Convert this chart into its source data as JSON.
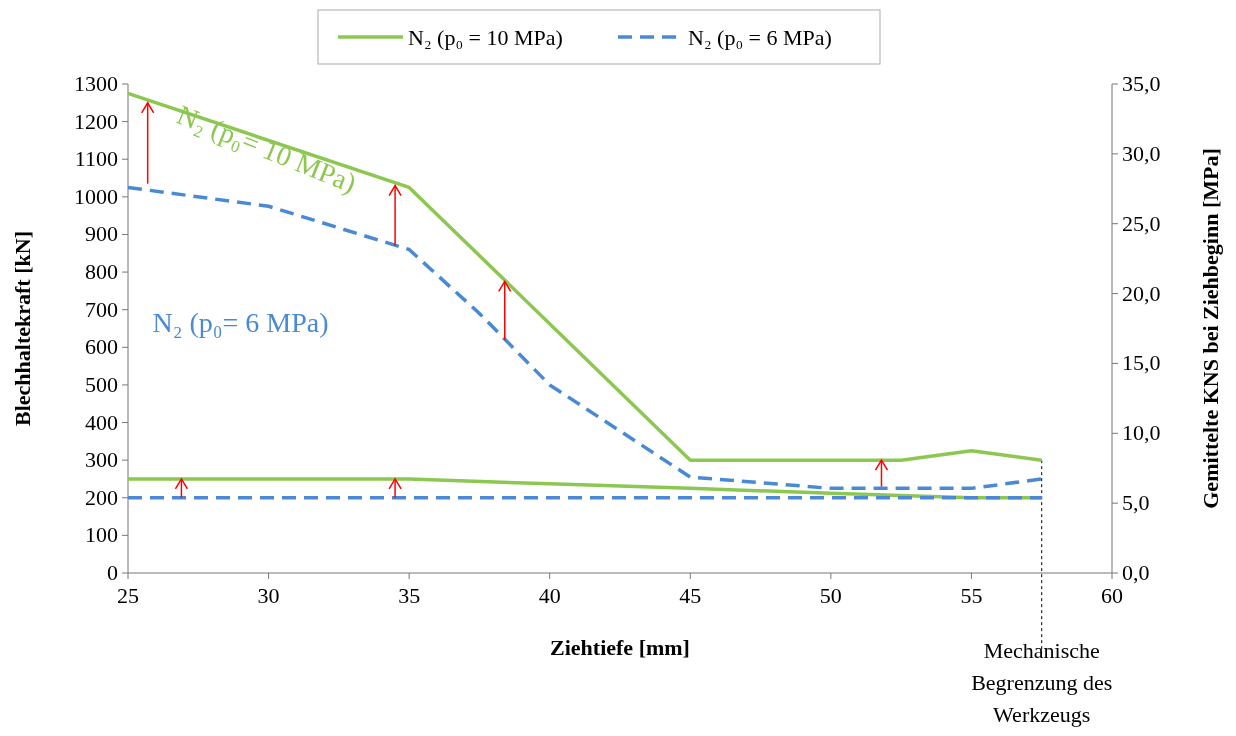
{
  "chart_data": {
    "type": "line",
    "xlabel": "Ziehtiefe [mm]",
    "ylabel": "Blechhaltekraft  [kN]",
    "y2label": "Gemittelte KNS bei Ziehbeginn [MPa]",
    "xlim": [
      25,
      60
    ],
    "xticks": [
      25,
      30,
      35,
      40,
      45,
      50,
      55,
      60
    ],
    "ylim": [
      0,
      1300
    ],
    "yticks": [
      0,
      100,
      200,
      300,
      400,
      500,
      600,
      700,
      800,
      900,
      1000,
      1100,
      1200,
      1300
    ],
    "y2lim": [
      0,
      35
    ],
    "y2ticks": [
      {
        "value": 0,
        "label": "0,0"
      },
      {
        "value": 5,
        "label": "5,0"
      },
      {
        "value": 10,
        "label": "10,0"
      },
      {
        "value": 15,
        "label": "15,0"
      },
      {
        "value": 20,
        "label": "20,0"
      },
      {
        "value": 25,
        "label": "25,0"
      },
      {
        "value": 30,
        "label": "30,0"
      },
      {
        "value": 35,
        "label": "35,0"
      }
    ],
    "grid": false,
    "legend": "top",
    "marker": "none",
    "series": [
      {
        "name": "N₂ (p₀ = 10 MPa)",
        "color": "#8cc751",
        "line_style": "solid",
        "x": [
          25,
          35,
          45,
          52.5,
          55,
          57.5
        ],
        "values": [
          1275,
          1025,
          300,
          300,
          325,
          300
        ]
      },
      {
        "name": "N₂ (p₀ = 6 MPa)",
        "color": "#4a8ad4",
        "line_style": "dashed",
        "x": [
          25,
          30,
          35,
          37.5,
          40,
          45,
          50,
          52.5,
          55,
          57.5
        ],
        "values": [
          1025,
          975,
          860,
          690,
          500,
          255,
          225,
          225,
          225,
          250
        ]
      },
      {
        "color": "#8cc751",
        "line_style": "solid",
        "x": [
          25,
          35,
          40,
          45,
          50,
          55,
          57.5
        ],
        "values": [
          250,
          250,
          237,
          225,
          212,
          200,
          200
        ]
      },
      {
        "color": "#4a8ad4",
        "line_style": "dashed",
        "x": [
          25,
          35,
          45,
          55,
          57.5
        ],
        "values": [
          200,
          200,
          200,
          200,
          200
        ]
      }
    ],
    "ref_lines": [
      {
        "axis": "x",
        "value": 57.5,
        "label": "Mechanische Begrenzung des Werkzeugs",
        "color": "#000000",
        "line_style": "dashed"
      }
    ],
    "annotations": [
      {
        "text": "N₂ (p₀= 10 MPa)",
        "x": 34.5,
        "y": 1030
      },
      "N₂ (p₀= 6 MPa)"
    ]
  }
}
